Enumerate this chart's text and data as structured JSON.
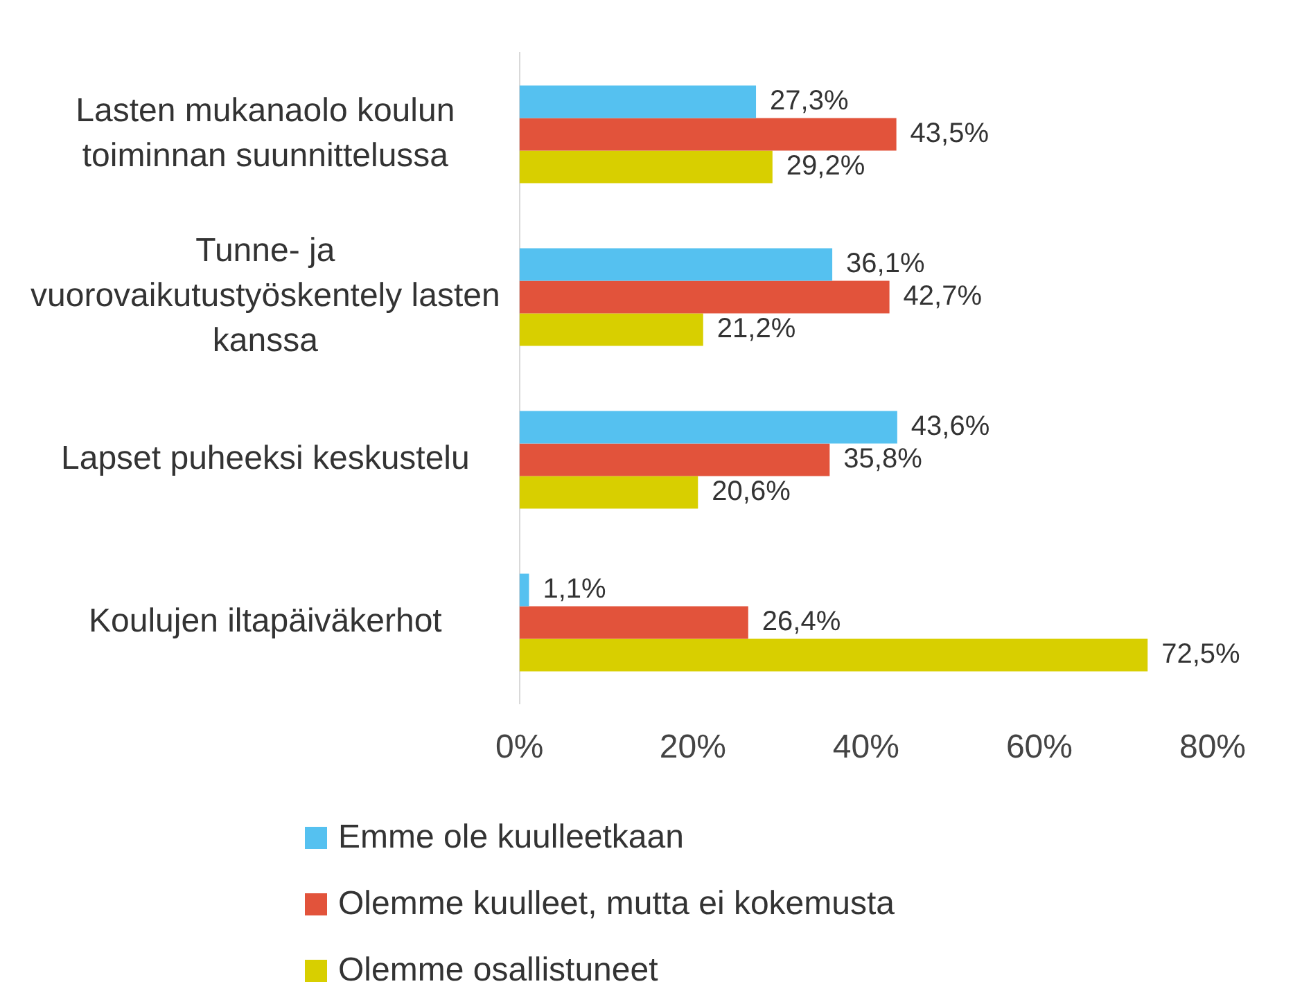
{
  "chart_data": {
    "type": "bar",
    "orientation": "horizontal",
    "categories": [
      "Lasten mukanaolo koulun toiminnan suunnittelussa",
      "Tunne- ja vuorovaikutustyöskentely lasten kanssa",
      "Lapset puheeksi keskustelu",
      "Koulujen iltapäiväkerhot"
    ],
    "series": [
      {
        "name": "Emme ole kuulleetkaan",
        "color": "#55c1f0",
        "values": [
          27.3,
          36.1,
          43.6,
          1.1
        ],
        "value_labels": [
          "27,3%",
          "36,1%",
          "43,6%",
          "1,1%"
        ]
      },
      {
        "name": "Olemme kuulleet, mutta ei kokemusta",
        "color": "#e2533b",
        "values": [
          43.5,
          42.7,
          35.8,
          26.4
        ],
        "value_labels": [
          "43,5%",
          "42,7%",
          "35,8%",
          "26,4%"
        ]
      },
      {
        "name": "Olemme osallistuneet",
        "color": "#d8cf00",
        "values": [
          29.2,
          21.2,
          20.6,
          72.5
        ],
        "value_labels": [
          "29,2%",
          "21,2%",
          "20,6%",
          "72,5%"
        ]
      }
    ],
    "xlim": [
      0,
      80
    ],
    "xticks": [
      {
        "value": 0,
        "label": "0%"
      },
      {
        "value": 20,
        "label": "20%"
      },
      {
        "value": 40,
        "label": "40%"
      },
      {
        "value": 60,
        "label": "60%"
      },
      {
        "value": 80,
        "label": "80%"
      }
    ],
    "grid": false,
    "legend": "bottom"
  }
}
